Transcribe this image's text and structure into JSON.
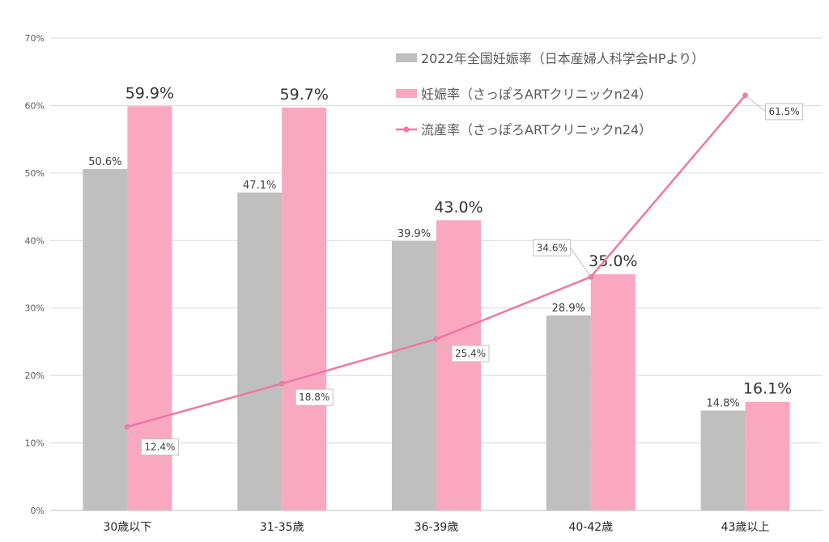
{
  "chart_data": {
    "type": "bar",
    "categories": [
      "30歳以下",
      "31-35歳",
      "36-39歳",
      "40-42歳",
      "43歳以上"
    ],
    "series": [
      {
        "name": "2022年全国妊娠率（日本産婦人科学会HPより）",
        "type": "bar",
        "color": "#bfbfbf",
        "values": [
          50.6,
          47.1,
          39.9,
          28.9,
          14.8
        ]
      },
      {
        "name": "妊娠率（さっぽろARTクリニックn24）",
        "type": "bar",
        "color": "#f9a8c0",
        "values": [
          59.9,
          59.7,
          43.0,
          35.0,
          16.1
        ]
      },
      {
        "name": "流産率（さっぽろARTクリニックn24）",
        "type": "line",
        "color": "#ee77a5",
        "values": [
          12.4,
          18.8,
          25.4,
          34.6,
          61.5
        ]
      }
    ],
    "ylim": [
      0,
      70
    ],
    "yticks": [
      "0%",
      "10%",
      "20%",
      "30%",
      "40%",
      "50%",
      "60%",
      "70%"
    ],
    "ytick_values": [
      0,
      10,
      20,
      30,
      40,
      50,
      60,
      70
    ],
    "grid": true,
    "legend_position": "top-right",
    "data_label_suffix": "%"
  }
}
